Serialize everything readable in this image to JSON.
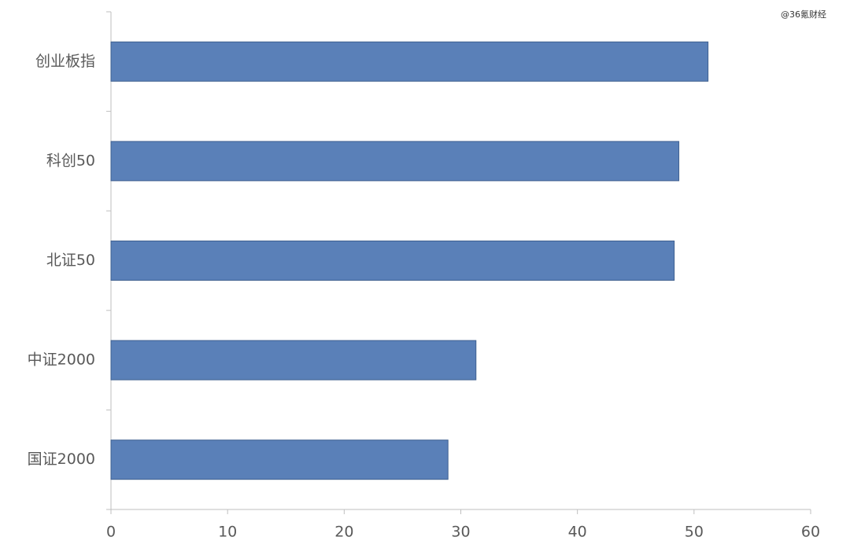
{
  "chart_data": {
    "type": "barh",
    "watermark": "@36氪财经",
    "categories": [
      "创业板指",
      "科创50",
      "北证50",
      "中证2000",
      "国证2000"
    ],
    "values": [
      51.2,
      48.7,
      48.3,
      31.3,
      28.9
    ],
    "color": "#5a80b8",
    "xlim": [
      0,
      60
    ],
    "xticks": [
      0,
      10,
      20,
      30,
      40,
      50,
      60
    ]
  }
}
